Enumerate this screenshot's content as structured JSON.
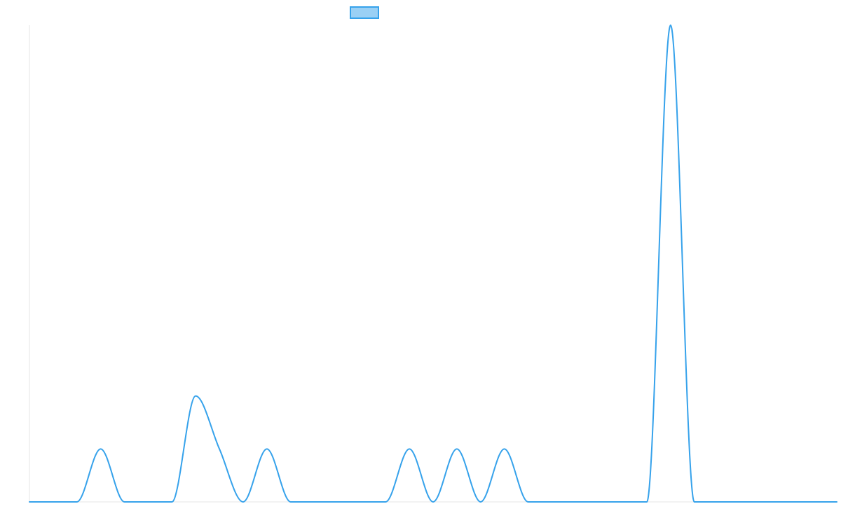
{
  "chart_data": {
    "type": "line",
    "title": "",
    "xlabel": "",
    "ylabel": "",
    "xlim": [
      0,
      34
    ],
    "ylim": [
      0,
      9
    ],
    "grid": false,
    "legend": {
      "placement": "top-center",
      "entries": [
        ""
      ]
    },
    "series": [
      {
        "name": "",
        "color": "#36a2eb",
        "fill_color": "#9ad0f5",
        "x": [
          0,
          1,
          2,
          3,
          4,
          5,
          6,
          7,
          8,
          9,
          10,
          11,
          12,
          13,
          14,
          15,
          16,
          17,
          18,
          19,
          20,
          21,
          22,
          23,
          24,
          25,
          26,
          27,
          28,
          29,
          30,
          31,
          32,
          33,
          34
        ],
        "y": [
          0,
          0,
          0,
          1,
          0,
          0,
          0,
          2,
          1,
          0,
          1,
          0,
          0,
          0,
          0,
          0,
          1,
          0,
          1,
          0,
          1,
          0,
          0,
          0,
          0,
          0,
          0,
          9,
          0,
          0,
          0,
          0,
          0,
          0,
          0
        ]
      }
    ]
  }
}
